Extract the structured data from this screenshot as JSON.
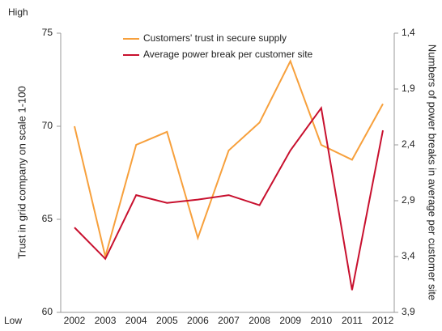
{
  "chart_data": {
    "type": "line",
    "high_label": "High",
    "low_label": "Low",
    "ylabel": "Trust in grid company on scale 1-100",
    "y2label": "Numbers of power breaks in average  per customer site",
    "categories": [
      "2002",
      "2003",
      "2004",
      "2005",
      "2006",
      "2007",
      "2008",
      "2009",
      "2010",
      "2011",
      "2012"
    ],
    "series": [
      {
        "name": "Customers' trust in secure supply",
        "color": "#f7a03c",
        "values": [
          70.0,
          63.0,
          69.0,
          69.7,
          64.0,
          68.7,
          70.2,
          73.5,
          69.0,
          68.2,
          71.2
        ]
      },
      {
        "name": "Average power break per customer site",
        "color": "#c8102e",
        "axis": "y2",
        "values": [
          3.14,
          3.42,
          2.85,
          2.92,
          2.89,
          2.85,
          2.94,
          2.45,
          2.07,
          3.7,
          2.27
        ]
      }
    ],
    "ylim": [
      60,
      75
    ],
    "yticks": [
      60,
      65,
      70,
      75
    ],
    "y2lim": [
      3.9,
      1.4
    ],
    "y2_inverted": true,
    "y2ticks": [
      {
        "value": 1.4,
        "label": "1,4"
      },
      {
        "value": 1.9,
        "label": "1,9"
      },
      {
        "value": 2.4,
        "label": "2,4"
      },
      {
        "value": 2.9,
        "label": "2,9"
      },
      {
        "value": 3.4,
        "label": "3,4"
      },
      {
        "value": 3.9,
        "label": "3,9"
      }
    ],
    "legend": "top",
    "grid": false
  }
}
